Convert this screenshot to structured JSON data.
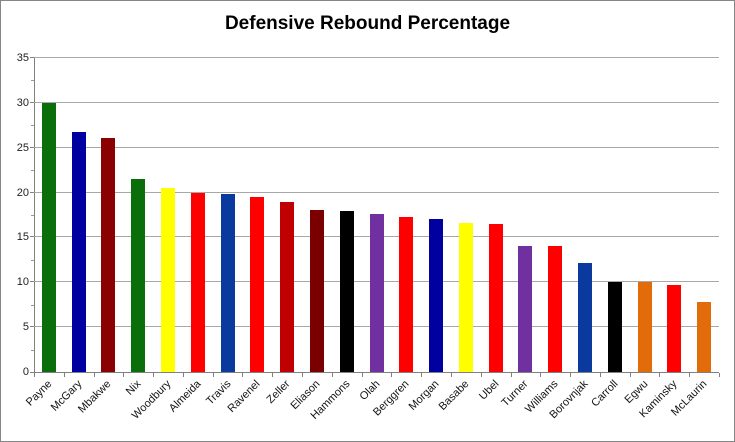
{
  "chart": {
    "title": "Defensive Rebound Percentage"
  },
  "chart_data": {
    "type": "bar",
    "title": "Defensive Rebound Percentage",
    "xlabel": "",
    "ylabel": "",
    "ylim": [
      0,
      35
    ],
    "ytick_step": 5,
    "yticks": [
      0,
      5,
      10,
      15,
      20,
      25,
      30,
      35
    ],
    "grid": true,
    "legend": "none",
    "categories": [
      "Payne",
      "McGary",
      "Mbakwe",
      "Nix",
      "Woodbury",
      "Almeida",
      "Travis",
      "Ravenel",
      "Zeller",
      "Eliason",
      "Hammons",
      "Olah",
      "Berggren",
      "Morgan",
      "Basabe",
      "Ubel",
      "Turner",
      "Williams",
      "Borovnjak",
      "Carroll",
      "Egwu",
      "Kaminsky",
      "McLaurin"
    ],
    "values": [
      30.0,
      26.7,
      26.1,
      21.5,
      20.5,
      20.0,
      19.8,
      19.5,
      19.0,
      18.1,
      18.0,
      17.6,
      17.3,
      17.1,
      16.6,
      16.5,
      14.1,
      14.0,
      12.1,
      10.0,
      10.0,
      9.7,
      7.8
    ],
    "bar_colors": [
      "#0a6e0a",
      "#0000a0",
      "#8b0000",
      "#0a6e0a",
      "#ffff00",
      "#ff0000",
      "#0a3a9e",
      "#ff0000",
      "#c00000",
      "#7a0000",
      "#000000",
      "#7030a0",
      "#ff0000",
      "#0000a0",
      "#ffff00",
      "#ff0000",
      "#7030a0",
      "#ff0000",
      "#0a3a9e",
      "#000000",
      "#e36c0a",
      "#ff0000",
      "#e36c0a"
    ],
    "layout_colors": {
      "gridline": "#a8a8a8",
      "axis": "#808080",
      "tick_label": "#1f1f1f",
      "background": "#ffffff",
      "border": "#868686"
    }
  }
}
